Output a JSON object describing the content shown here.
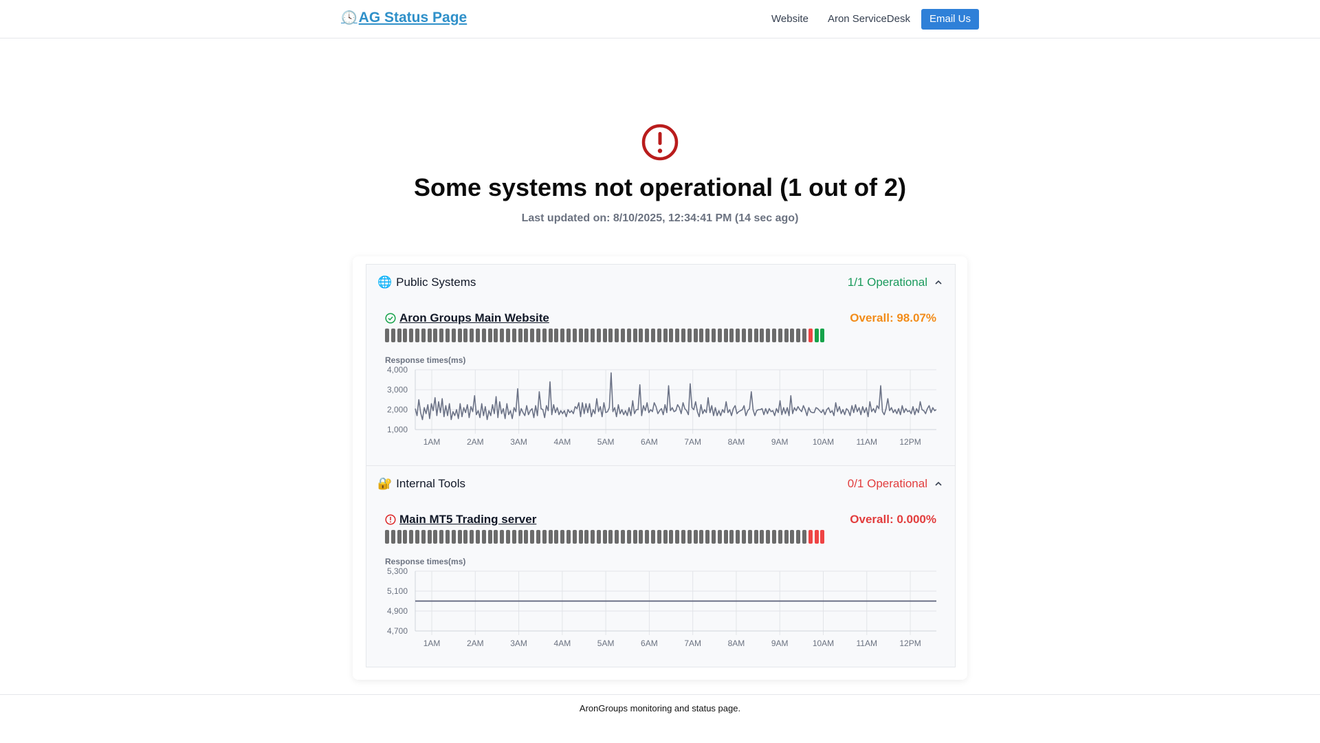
{
  "header": {
    "brand_icon": "clock-icon",
    "brand": "AG Status Page",
    "nav": {
      "website": "Website",
      "servicedesk": "Aron ServiceDesk",
      "email": "Email Us"
    }
  },
  "hero": {
    "icon": "alert-circle-icon",
    "title": "Some systems not operational (1 out of 2)",
    "subtitle": "Last updated on: 8/10/2025, 12:34:41 PM (14 sec ago)"
  },
  "colors": {
    "operational": "#16a34a",
    "degraded": "#ef4444",
    "partial": "#f28c1a",
    "unknown": "#6b6b6b",
    "link": "#2f90c9"
  },
  "groups": [
    {
      "icon": "globe-icon",
      "name": "Public Systems",
      "status": "1/1 Operational",
      "status_color": "#1a9a5c",
      "service": {
        "icon": "check-circle-icon",
        "name": "Aron Groups Main Website",
        "overall": "Overall: 98.07%",
        "overall_color": "#f28c1a",
        "status_bars": {
          "unknown": 70,
          "down": 1,
          "up": 2
        },
        "response_label": "Response times(ms)"
      }
    },
    {
      "icon": "lock-key-icon",
      "name": "Internal Tools",
      "status": "0/1 Operational",
      "status_color": "#e23d3d",
      "service": {
        "icon": "alert-circle-icon",
        "name": "Main MT5 Trading server",
        "overall": "Overall: 0.000%",
        "overall_color": "#e23d3d",
        "status_bars": {
          "unknown": 70,
          "down": 3,
          "up": 0
        },
        "response_label": "Response times(ms)"
      }
    }
  ],
  "chart_data": [
    {
      "type": "line",
      "title": "",
      "ylabel": "Response times(ms)",
      "x_ticks": [
        "1AM",
        "2AM",
        "3AM",
        "4AM",
        "5AM",
        "6AM",
        "7AM",
        "8AM",
        "9AM",
        "10AM",
        "11AM",
        "12PM"
      ],
      "x_range": [
        0.62,
        12.6
      ],
      "y_ticks": [
        "1,000",
        "2,000",
        "3,000",
        "4,000"
      ],
      "ylim": [
        1000,
        4000
      ],
      "grid": true,
      "series": [
        {
          "values": [
            2050,
            1700,
            2500,
            1850,
            1500,
            2100,
            1800,
            2250,
            1550,
            2300,
            1950,
            2600,
            1700,
            2400,
            1850,
            2550,
            1650,
            2200,
            1700,
            2300,
            1500,
            1900,
            1700,
            2000,
            1550,
            2300,
            1650,
            2100,
            1850,
            2250,
            1600,
            2150,
            1900,
            2700,
            1750,
            1950,
            1600,
            2300,
            1700,
            2150,
            1500,
            1950,
            1700,
            2250,
            1800,
            2650,
            1600,
            2400,
            1800,
            2050,
            1550,
            2300,
            1750,
            1950,
            1550,
            2100,
            1900,
            3050,
            1700,
            2050,
            1850,
            1700,
            2200,
            1750,
            1950,
            2050,
            1600,
            2200,
            1700,
            2900,
            2050,
            2000,
            1600,
            2200,
            1950,
            3400,
            1750,
            2250,
            1850,
            2100,
            1750,
            1950,
            1800,
            1950,
            1650,
            2000,
            1850,
            1950,
            1800,
            2150,
            2050,
            2350,
            1650,
            2350,
            1800,
            2300,
            1850,
            2300,
            1650,
            2000,
            1800,
            2550,
            1900,
            2150,
            1650,
            2350,
            1850,
            1900,
            2100,
            3850,
            1900,
            2100,
            1650,
            2250,
            1800,
            2000,
            1750,
            1950,
            1700,
            2100,
            1700,
            2450,
            1800,
            2000,
            2000,
            3250,
            1700,
            2200,
            1950,
            2350,
            1850,
            2000,
            1900,
            2350,
            2150,
            1800,
            1950,
            2050,
            1750,
            2250,
            1850,
            3200,
            1950,
            2100,
            1900,
            1950,
            2250,
            2100,
            1800,
            2350,
            2050,
            1950,
            1750,
            3300,
            2100,
            2000,
            2400,
            1900,
            1650,
            2250,
            1800,
            2000,
            1850,
            2600,
            1850,
            2200,
            1700,
            2100,
            1700,
            1950,
            1700,
            2000,
            1850,
            2400,
            1850,
            2000,
            1700,
            2050,
            2200,
            1800,
            1900,
            1950,
            2000,
            2200,
            1700,
            1950,
            2050,
            2900,
            2000,
            1700,
            1950,
            2000,
            2000,
            2050,
            1750,
            2050,
            1800,
            2050,
            1900,
            1950,
            1700,
            2050,
            1850,
            2450,
            1750,
            2100,
            1800,
            2100,
            1700,
            2700,
            1800,
            2100,
            1950,
            2150,
            2000,
            1900,
            2200,
            2000,
            1700,
            2100,
            1900,
            1850,
            1850,
            2100,
            2050,
            1950,
            1850,
            2000,
            1750,
            2000,
            2100,
            1850,
            1950,
            1700,
            2350,
            1900,
            2150,
            1800,
            2000,
            1750,
            2050,
            1950,
            1700,
            2200,
            1850,
            2250,
            1900,
            2100,
            1750,
            2150,
            1850,
            2100,
            1650,
            2400,
            1900,
            2050,
            1850,
            2200,
            2050,
            3200,
            1900,
            1750,
            2050,
            2550,
            1950,
            2100,
            1850,
            2000,
            1800,
            2050,
            1750,
            2200,
            1850,
            2050,
            1900,
            1950,
            1800,
            2150,
            1750,
            2050,
            1850,
            2400,
            2000,
            1950,
            1800,
            2050,
            2200,
            1850,
            2100,
            1950,
            2000
          ]
        }
      ]
    },
    {
      "type": "line",
      "title": "",
      "ylabel": "Response times(ms)",
      "x_ticks": [
        "1AM",
        "2AM",
        "3AM",
        "4AM",
        "5AM",
        "6AM",
        "7AM",
        "8AM",
        "9AM",
        "10AM",
        "11AM",
        "12PM"
      ],
      "x_range": [
        0.62,
        12.6
      ],
      "y_ticks": [
        "4,700",
        "4,900",
        "5,100",
        "5,300"
      ],
      "ylim": [
        4700,
        5300
      ],
      "grid": true,
      "series": [
        {
          "values": [
            5000,
            5000
          ]
        }
      ]
    }
  ],
  "footer": {
    "text": "AronGroups monitoring and status page."
  }
}
